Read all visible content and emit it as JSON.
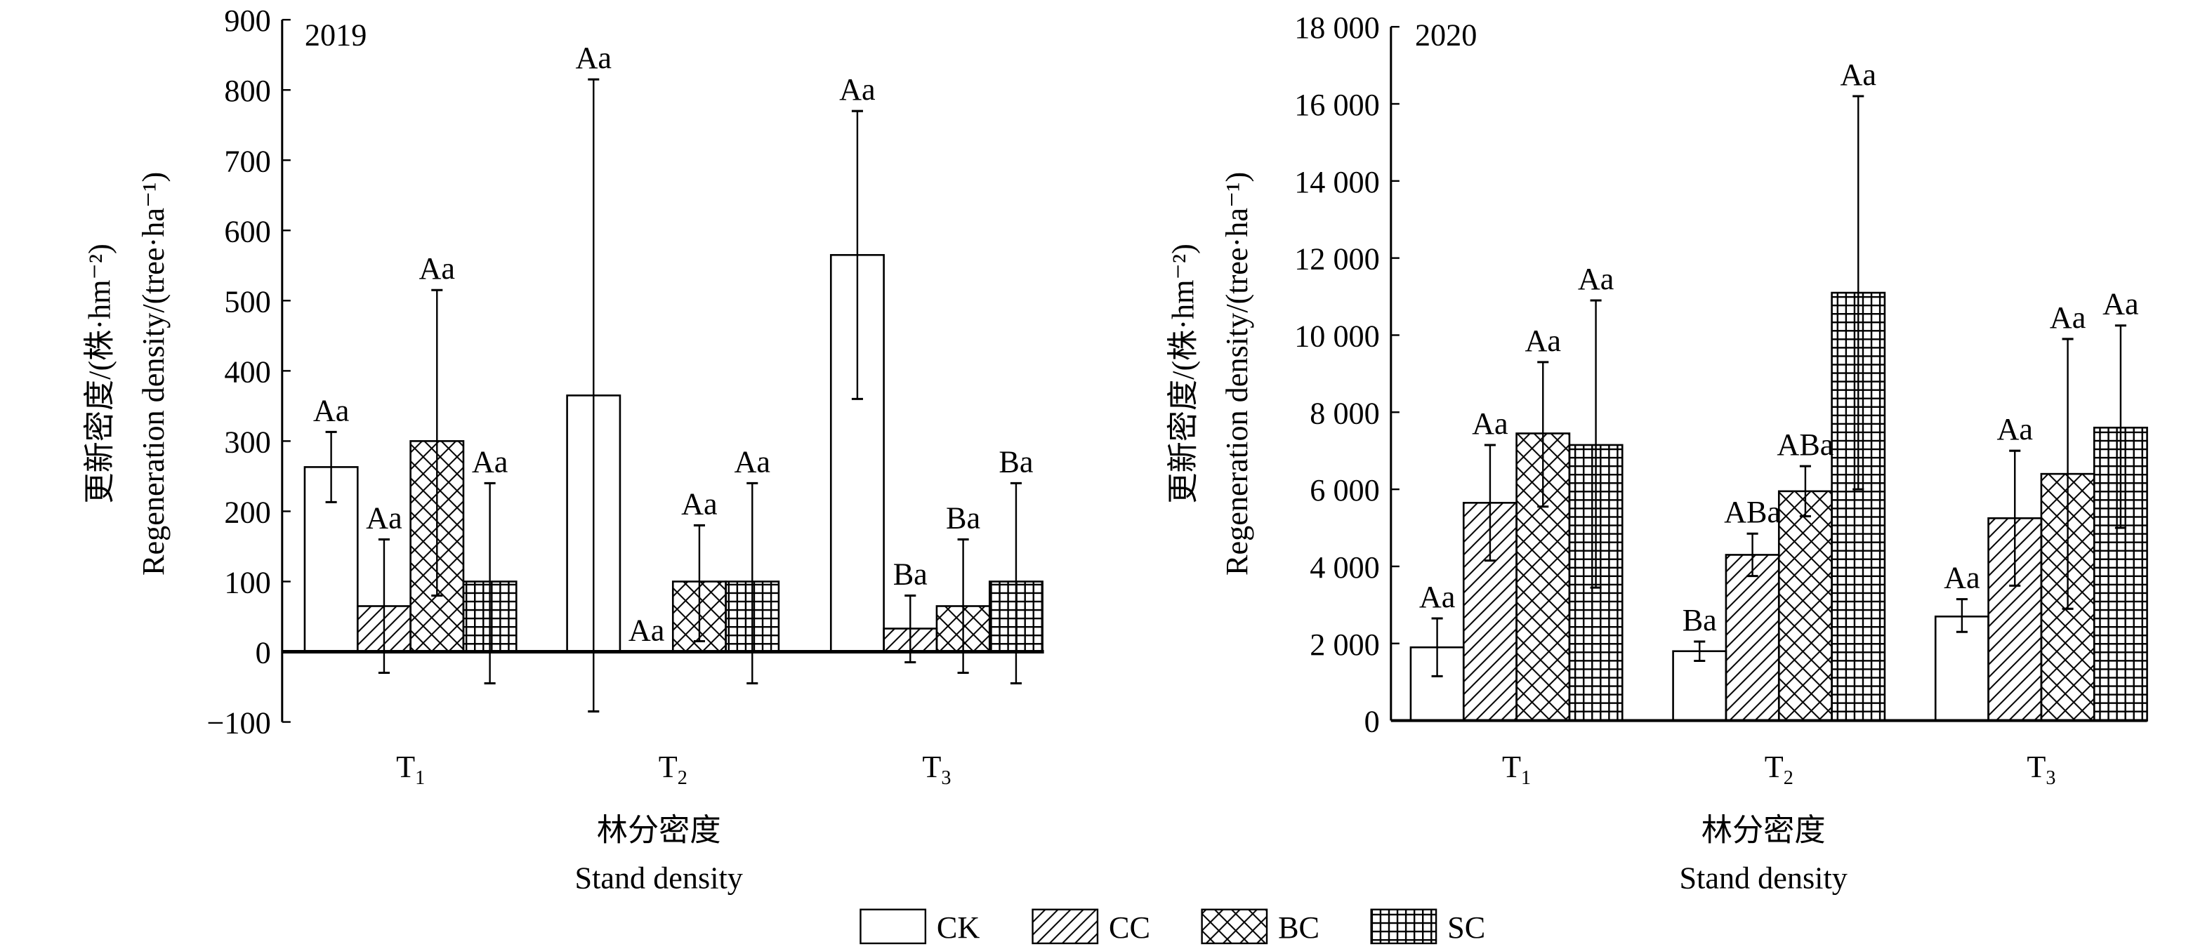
{
  "chart_data": [
    {
      "type": "bar",
      "title": "2019",
      "ylabel_cn": "更新密度/(株·hm⁻²)",
      "ylabel_en": "Regeneration density/(tree·ha⁻¹)",
      "xlabel_cn": "林分密度",
      "xlabel_en": "Stand density",
      "categories": [
        "T",
        "T",
        "T"
      ],
      "category_subscripts": [
        "1",
        "2",
        "3"
      ],
      "ylim": [
        -100,
        900
      ],
      "yticks": [
        -100,
        0,
        100,
        200,
        300,
        400,
        500,
        600,
        700,
        800,
        900
      ],
      "ytick_labels": [
        "−100",
        "0",
        "100",
        "200",
        "300",
        "400",
        "500",
        "600",
        "700",
        "800",
        "900"
      ],
      "series": [
        {
          "name": "CK",
          "values": [
            263,
            365,
            565
          ],
          "err_low": [
            213,
            -85,
            360
          ],
          "err_high": [
            313,
            815,
            770
          ],
          "labels": [
            "Aa",
            "Aa",
            "Aa"
          ]
        },
        {
          "name": "CC",
          "values": [
            65,
            0,
            33
          ],
          "err_low": [
            -30,
            0,
            -15
          ],
          "err_high": [
            160,
            0,
            80
          ],
          "labels": [
            "Aa",
            "Aa",
            "Ba"
          ]
        },
        {
          "name": "BC",
          "values": [
            300,
            100,
            65
          ],
          "err_low": [
            80,
            15,
            -30
          ],
          "err_high": [
            515,
            180,
            160
          ],
          "labels": [
            "Aa",
            "Aa",
            "Ba"
          ]
        },
        {
          "name": "SC",
          "values": [
            100,
            100,
            100
          ],
          "err_low": [
            -45,
            -45,
            -45
          ],
          "err_high": [
            240,
            240,
            240
          ],
          "labels": [
            "Aa",
            "Aa",
            "Ba"
          ]
        }
      ]
    },
    {
      "type": "bar",
      "title": "2020",
      "ylabel_cn": "更新密度/(株·hm⁻²)",
      "ylabel_en": "Regeneration density/(tree·ha⁻¹)",
      "xlabel_cn": "林分密度",
      "xlabel_en": "Stand density",
      "categories": [
        "T",
        "T",
        "T"
      ],
      "category_subscripts": [
        "1",
        "2",
        "3"
      ],
      "ylim": [
        0,
        18000
      ],
      "yticks": [
        0,
        2000,
        4000,
        6000,
        8000,
        10000,
        12000,
        14000,
        16000,
        18000
      ],
      "ytick_labels": [
        "0",
        "2 000",
        "4 000",
        "6 000",
        "8 000",
        "10 000",
        "12 000",
        "14 000",
        "16 000",
        "18 000"
      ],
      "series": [
        {
          "name": "CK",
          "values": [
            1900,
            1800,
            2700
          ],
          "err_low": [
            1150,
            1550,
            2300
          ],
          "err_high": [
            2650,
            2050,
            3150
          ],
          "labels": [
            "Aa",
            "Ba",
            "Aa"
          ]
        },
        {
          "name": "CC",
          "values": [
            5650,
            4300,
            5250
          ],
          "err_low": [
            4150,
            3750,
            3500
          ],
          "err_high": [
            7150,
            4850,
            7000
          ],
          "labels": [
            "Aa",
            "ABa",
            "Aa"
          ]
        },
        {
          "name": "BC",
          "values": [
            7450,
            5950,
            6400
          ],
          "err_low": [
            5550,
            5300,
            2900
          ],
          "err_high": [
            9300,
            6600,
            9900
          ],
          "labels": [
            "Aa",
            "ABa",
            "Aa"
          ]
        },
        {
          "name": "SC",
          "values": [
            7150,
            11100,
            7600
          ],
          "err_low": [
            3450,
            6000,
            5000
          ],
          "err_high": [
            10900,
            16200,
            10250
          ],
          "labels": [
            "Aa",
            "Aa",
            "Aa"
          ]
        }
      ]
    }
  ],
  "legend": {
    "position": "bottom-center",
    "items": [
      {
        "name": "CK",
        "pattern": "none"
      },
      {
        "name": "CC",
        "pattern": "diagonal"
      },
      {
        "name": "BC",
        "pattern": "crosshatch"
      },
      {
        "name": "SC",
        "pattern": "grid"
      }
    ]
  }
}
